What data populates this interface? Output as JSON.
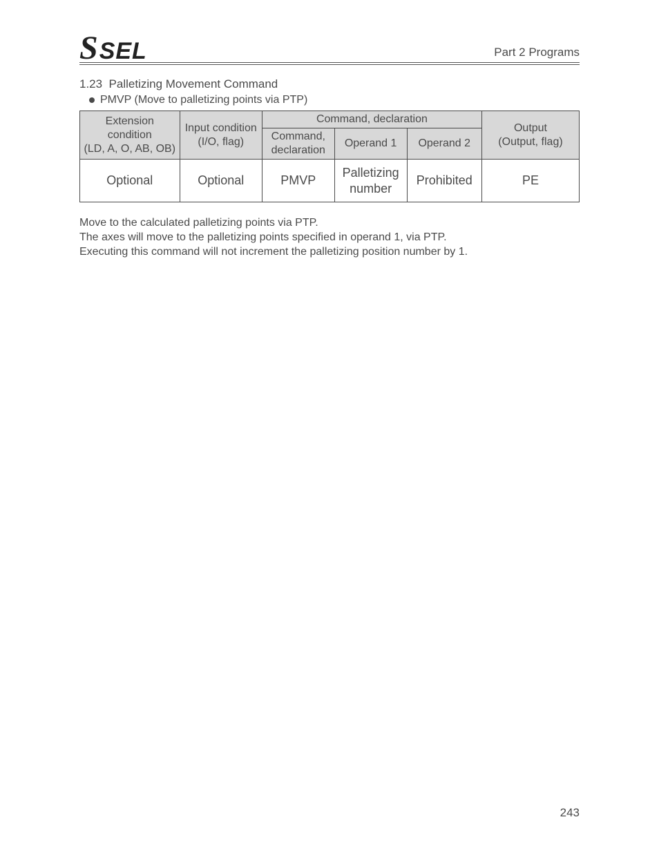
{
  "header": {
    "logo_s": "S",
    "logo_sel": "SEL",
    "part_label": "Part 2 Programs"
  },
  "section": {
    "number": "1.23",
    "title": "Palletizing Movement Command",
    "subtitle": "PMVP (Move to palletizing points via PTP)"
  },
  "table": {
    "headers": {
      "ext_cond_line1": "Extension condition",
      "ext_cond_line2": "(LD, A, O, AB, OB)",
      "input_cond_line1": "Input condition",
      "input_cond_line2": "(I/O, flag)",
      "cmd_decl_group": "Command, declaration",
      "cmd_decl_line1": "Command,",
      "cmd_decl_line2": "declaration",
      "operand1": "Operand 1",
      "operand2": "Operand 2",
      "output_line1": "Output",
      "output_line2": "(Output, flag)"
    },
    "row": {
      "ext": "Optional",
      "inp": "Optional",
      "cmd": "PMVP",
      "op1_line1": "Palletizing",
      "op1_line2": "number",
      "op2": "Prohibited",
      "out": "PE"
    },
    "style": {
      "header_bg": "#d8d8d8",
      "border_color": "#4a4a4a",
      "header_fontsize": 16,
      "data_fontsize": 18,
      "col_widths_pct": [
        20,
        16.5,
        14.5,
        14.5,
        15,
        19.5
      ]
    }
  },
  "body": {
    "p1": "Move to the calculated palletizing points via PTP.",
    "p2": "The axes will move to the palletizing points specified in operand 1, via PTP.",
    "p3": "Executing this command will not increment the palletizing position number by 1."
  },
  "page_number": "243"
}
